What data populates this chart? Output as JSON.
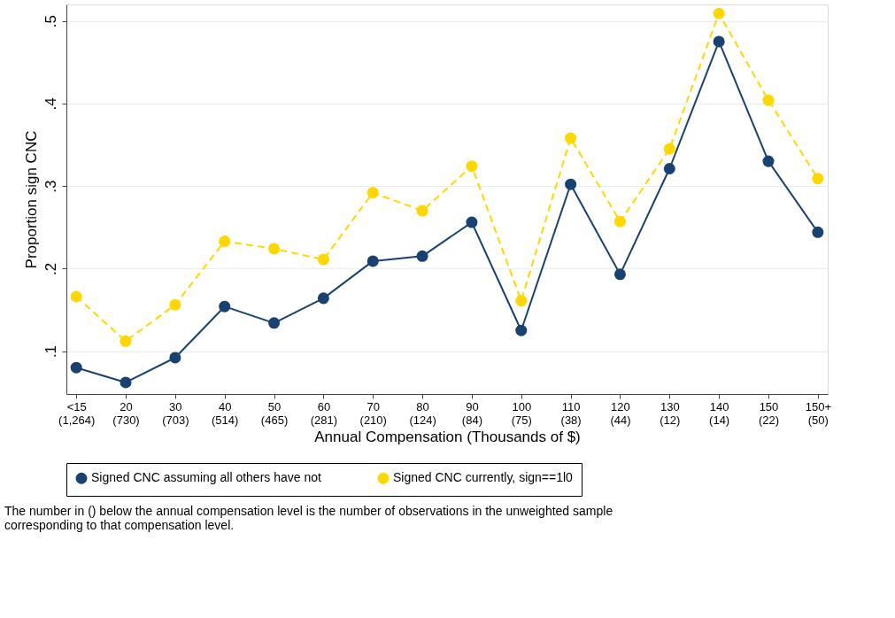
{
  "chart_data": {
    "type": "line",
    "xlabel": "Annual Compensation (Thousands of $)",
    "ylabel": "Proportion sign CNC",
    "categories": [
      "<15\n(1,264)",
      "20\n(730)",
      "30\n(703)",
      "40\n(514)",
      "50\n(465)",
      "60\n(281)",
      "70\n(210)",
      "80\n(124)",
      "90\n(84)",
      "100\n(75)",
      "110\n(38)",
      "120\n(44)",
      "130\n(12)",
      "140\n(14)",
      "150\n(22)",
      "150+\n(50)"
    ],
    "series": [
      {
        "name": "Signed CNC assuming all others have not",
        "color": "#1a4270",
        "line_style": "solid",
        "values": [
          0.08,
          0.062,
          0.092,
          0.154,
          0.134,
          0.164,
          0.209,
          0.215,
          0.256,
          0.125,
          0.302,
          0.193,
          0.321,
          0.475,
          0.33,
          0.244
        ]
      },
      {
        "name": "Signed CNC currently, sign==1l0",
        "color": "#ffd700",
        "line_style": "dashed",
        "values": [
          0.166,
          0.112,
          0.156,
          0.233,
          0.224,
          0.211,
          0.292,
          0.27,
          0.324,
          0.161,
          0.358,
          0.257,
          0.345,
          0.509,
          0.404,
          0.309
        ]
      }
    ],
    "ylim": [
      0.048,
      0.52
    ],
    "yticks": [
      {
        "value": 0.1,
        "label": ".1"
      },
      {
        "value": 0.2,
        "label": ".2"
      },
      {
        "value": 0.3,
        "label": ".3"
      },
      {
        "value": 0.4,
        "label": ".4"
      },
      {
        "value": 0.5,
        "label": ".5"
      }
    ],
    "grid": "y",
    "legend": "bottom",
    "marker": "circle",
    "annotations": [
      "The number in () below the annual compensation level is the number of observations in the unweighted sample corresponding to that compensation level."
    ]
  }
}
